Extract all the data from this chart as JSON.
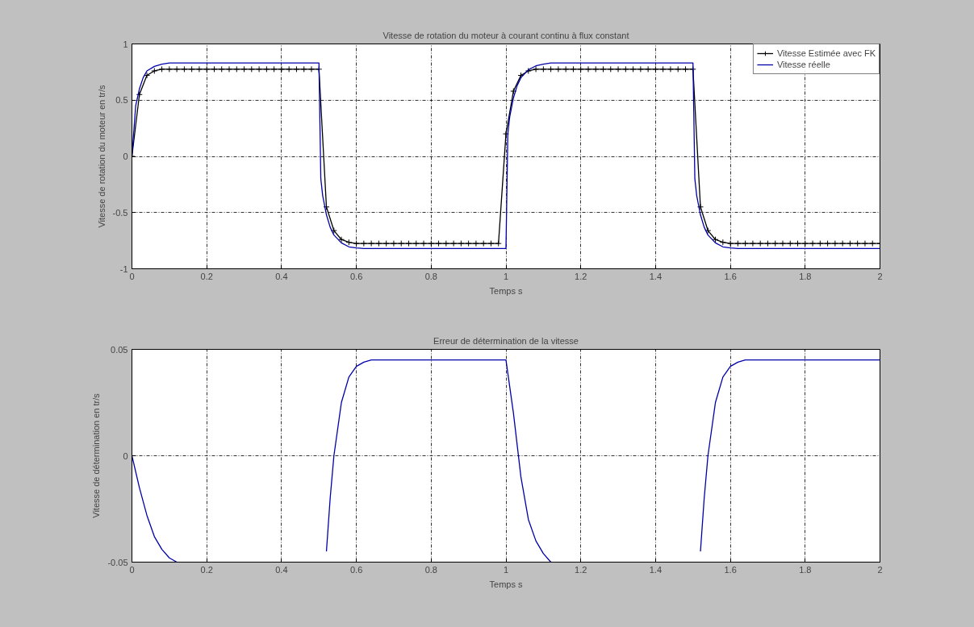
{
  "chart_data": [
    {
      "type": "line",
      "title": "Vitesse de rotation du moteur à courant continu à flux constant",
      "xlabel": "Temps s",
      "ylabel": "Vitesse de rotation du moteur en tr/s",
      "xlim": [
        0,
        2
      ],
      "ylim": [
        -1,
        1
      ],
      "xticks": [
        0,
        0.2,
        0.4,
        0.6,
        0.8,
        1,
        1.2,
        1.4,
        1.6,
        1.8,
        2
      ],
      "yticks": [
        -1,
        -0.5,
        0,
        0.5,
        1
      ],
      "grid": true,
      "legend": "top right",
      "series": [
        {
          "name": "Vitesse Estimée avec FK",
          "color": "#000000",
          "marker": "cross",
          "x": [
            0,
            0.02,
            0.04,
            0.06,
            0.08,
            0.1,
            0.12,
            0.14,
            0.16,
            0.18,
            0.2,
            0.22,
            0.24,
            0.26,
            0.28,
            0.3,
            0.32,
            0.34,
            0.36,
            0.38,
            0.4,
            0.42,
            0.44,
            0.46,
            0.48,
            0.5,
            0.52,
            0.54,
            0.56,
            0.58,
            0.6,
            0.62,
            0.64,
            0.66,
            0.68,
            0.7,
            0.72,
            0.74,
            0.76,
            0.78,
            0.8,
            0.82,
            0.84,
            0.86,
            0.88,
            0.9,
            0.92,
            0.94,
            0.96,
            0.98,
            1,
            1.02,
            1.04,
            1.06,
            1.08,
            1.1,
            1.12,
            1.14,
            1.16,
            1.18,
            1.2,
            1.22,
            1.24,
            1.26,
            1.28,
            1.3,
            1.32,
            1.34,
            1.36,
            1.38,
            1.4,
            1.42,
            1.44,
            1.46,
            1.48,
            1.5,
            1.52,
            1.54,
            1.56,
            1.58,
            1.6,
            1.62,
            1.64,
            1.66,
            1.68,
            1.7,
            1.72,
            1.74,
            1.76,
            1.78,
            1.8,
            1.82,
            1.84,
            1.86,
            1.88,
            1.9,
            1.92,
            1.94,
            1.96,
            1.98,
            2
          ],
          "values": [
            0,
            0.55,
            0.72,
            0.76,
            0.775,
            0.775,
            0.775,
            0.775,
            0.775,
            0.775,
            0.775,
            0.775,
            0.775,
            0.775,
            0.775,
            0.775,
            0.775,
            0.775,
            0.775,
            0.775,
            0.775,
            0.775,
            0.775,
            0.775,
            0.775,
            0.775,
            -0.45,
            -0.66,
            -0.74,
            -0.765,
            -0.775,
            -0.775,
            -0.775,
            -0.775,
            -0.775,
            -0.775,
            -0.775,
            -0.775,
            -0.775,
            -0.775,
            -0.775,
            -0.775,
            -0.775,
            -0.775,
            -0.775,
            -0.775,
            -0.775,
            -0.775,
            -0.775,
            -0.775,
            0.2,
            0.58,
            0.72,
            0.76,
            0.775,
            0.775,
            0.775,
            0.775,
            0.775,
            0.775,
            0.775,
            0.775,
            0.775,
            0.775,
            0.775,
            0.775,
            0.775,
            0.775,
            0.775,
            0.775,
            0.775,
            0.775,
            0.775,
            0.775,
            0.775,
            0.775,
            -0.45,
            -0.66,
            -0.74,
            -0.765,
            -0.775,
            -0.775,
            -0.775,
            -0.775,
            -0.775,
            -0.775,
            -0.775,
            -0.775,
            -0.775,
            -0.775,
            -0.775,
            -0.775,
            -0.775,
            -0.775,
            -0.775,
            -0.775,
            -0.775,
            -0.775,
            -0.775,
            -0.775,
            -0.775
          ]
        },
        {
          "name": "Vitesse réelle",
          "color": "#0000aa",
          "x": [
            0,
            0.01,
            0.02,
            0.03,
            0.04,
            0.06,
            0.08,
            0.1,
            0.12,
            0.5,
            0.505,
            0.51,
            0.52,
            0.53,
            0.54,
            0.56,
            0.58,
            0.6,
            0.62,
            1,
            1.005,
            1.01,
            1.02,
            1.03,
            1.04,
            1.06,
            1.08,
            1.1,
            1.12,
            1.5,
            1.505,
            1.51,
            1.52,
            1.53,
            1.54,
            1.56,
            1.58,
            1.6,
            1.62,
            2
          ],
          "values": [
            0,
            0.45,
            0.6,
            0.7,
            0.76,
            0.8,
            0.82,
            0.83,
            0.83,
            0.83,
            -0.2,
            -0.35,
            -0.52,
            -0.63,
            -0.7,
            -0.77,
            -0.805,
            -0.815,
            -0.82,
            -0.82,
            0.2,
            0.35,
            0.52,
            0.63,
            0.7,
            0.77,
            0.805,
            0.82,
            0.83,
            0.83,
            -0.2,
            -0.35,
            -0.52,
            -0.63,
            -0.7,
            -0.77,
            -0.805,
            -0.815,
            -0.82,
            -0.82
          ]
        }
      ]
    },
    {
      "type": "line",
      "title": "Erreur de détermination de la vitesse",
      "xlabel": "Temps s",
      "ylabel": "Vitesse de détermination en tr/s",
      "xlim": [
        0,
        2
      ],
      "ylim": [
        -0.05,
        0.05
      ],
      "xticks": [
        0,
        0.2,
        0.4,
        0.6,
        0.8,
        1,
        1.2,
        1.4,
        1.6,
        1.8,
        2
      ],
      "yticks": [
        -0.05,
        0,
        0.05
      ],
      "grid": true,
      "series": [
        {
          "color": "#0000aa",
          "x": [
            0,
            0.02,
            0.04,
            0.06,
            0.08,
            0.1,
            0.12,
            0.13,
            0.52,
            0.53,
            0.54,
            0.56,
            0.58,
            0.6,
            0.62,
            0.64,
            1,
            1.02,
            1.04,
            1.06,
            1.08,
            1.1,
            1.12,
            1.13,
            1.52,
            1.53,
            1.54,
            1.56,
            1.58,
            1.6,
            1.62,
            1.64,
            2
          ],
          "values": [
            0,
            -0.015,
            -0.028,
            -0.038,
            -0.044,
            -0.048,
            -0.05,
            null,
            -0.045,
            -0.02,
            0,
            0.025,
            0.037,
            0.042,
            0.044,
            0.045,
            0.045,
            0.02,
            -0.01,
            -0.03,
            -0.04,
            -0.046,
            -0.05,
            null,
            -0.045,
            -0.02,
            0,
            0.025,
            0.037,
            0.042,
            0.044,
            0.045,
            0.045
          ]
        }
      ]
    }
  ]
}
